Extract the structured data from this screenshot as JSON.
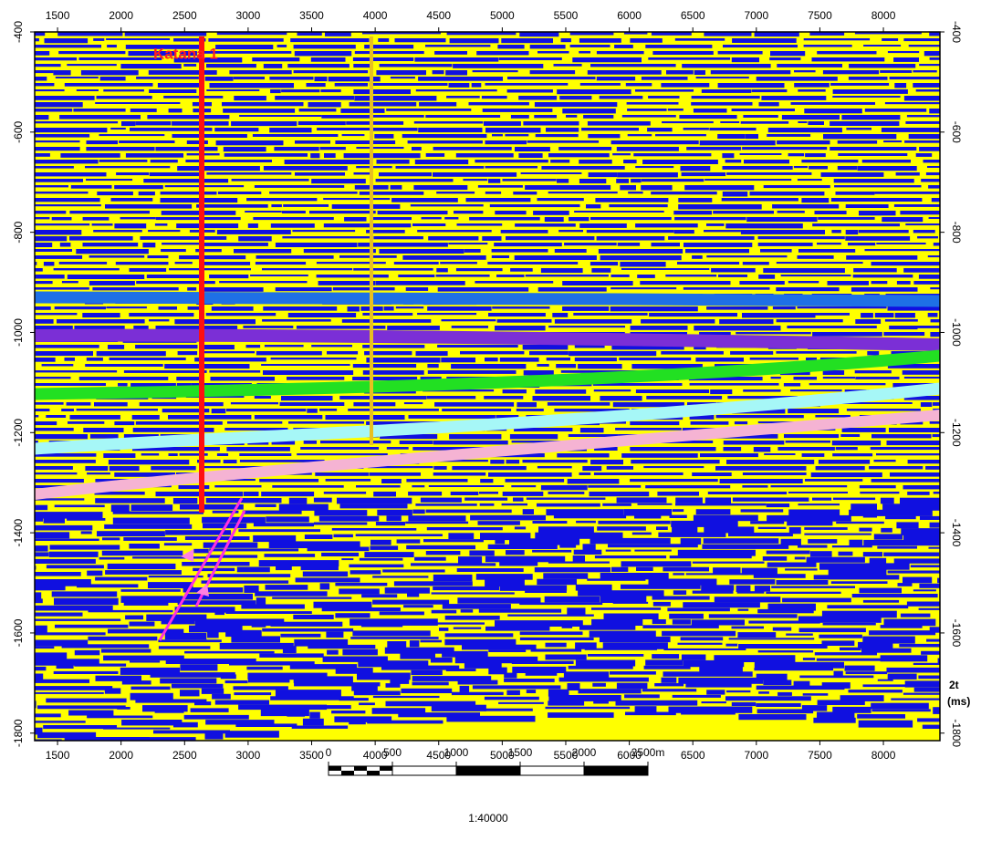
{
  "chart_data": {
    "type": "seismic",
    "well_label": "Katana 1",
    "xlim": [
      1320,
      8445
    ],
    "xticks": [
      1500,
      2000,
      2500,
      3000,
      3500,
      4000,
      4500,
      5000,
      5500,
      6000,
      6500,
      7000,
      7500,
      8000
    ],
    "ylim": [
      -400,
      -1815
    ],
    "yticks": [
      -400,
      -600,
      -800,
      -1000,
      -1200,
      -1400,
      -1600,
      -1800
    ],
    "y_label": [
      "2t",
      "(ms)"
    ],
    "scale_ticks": [
      0,
      500,
      1000,
      1500,
      2000,
      {
        "value": 2500,
        "label": "2500m"
      }
    ],
    "scale_text": "1:40000"
  }
}
